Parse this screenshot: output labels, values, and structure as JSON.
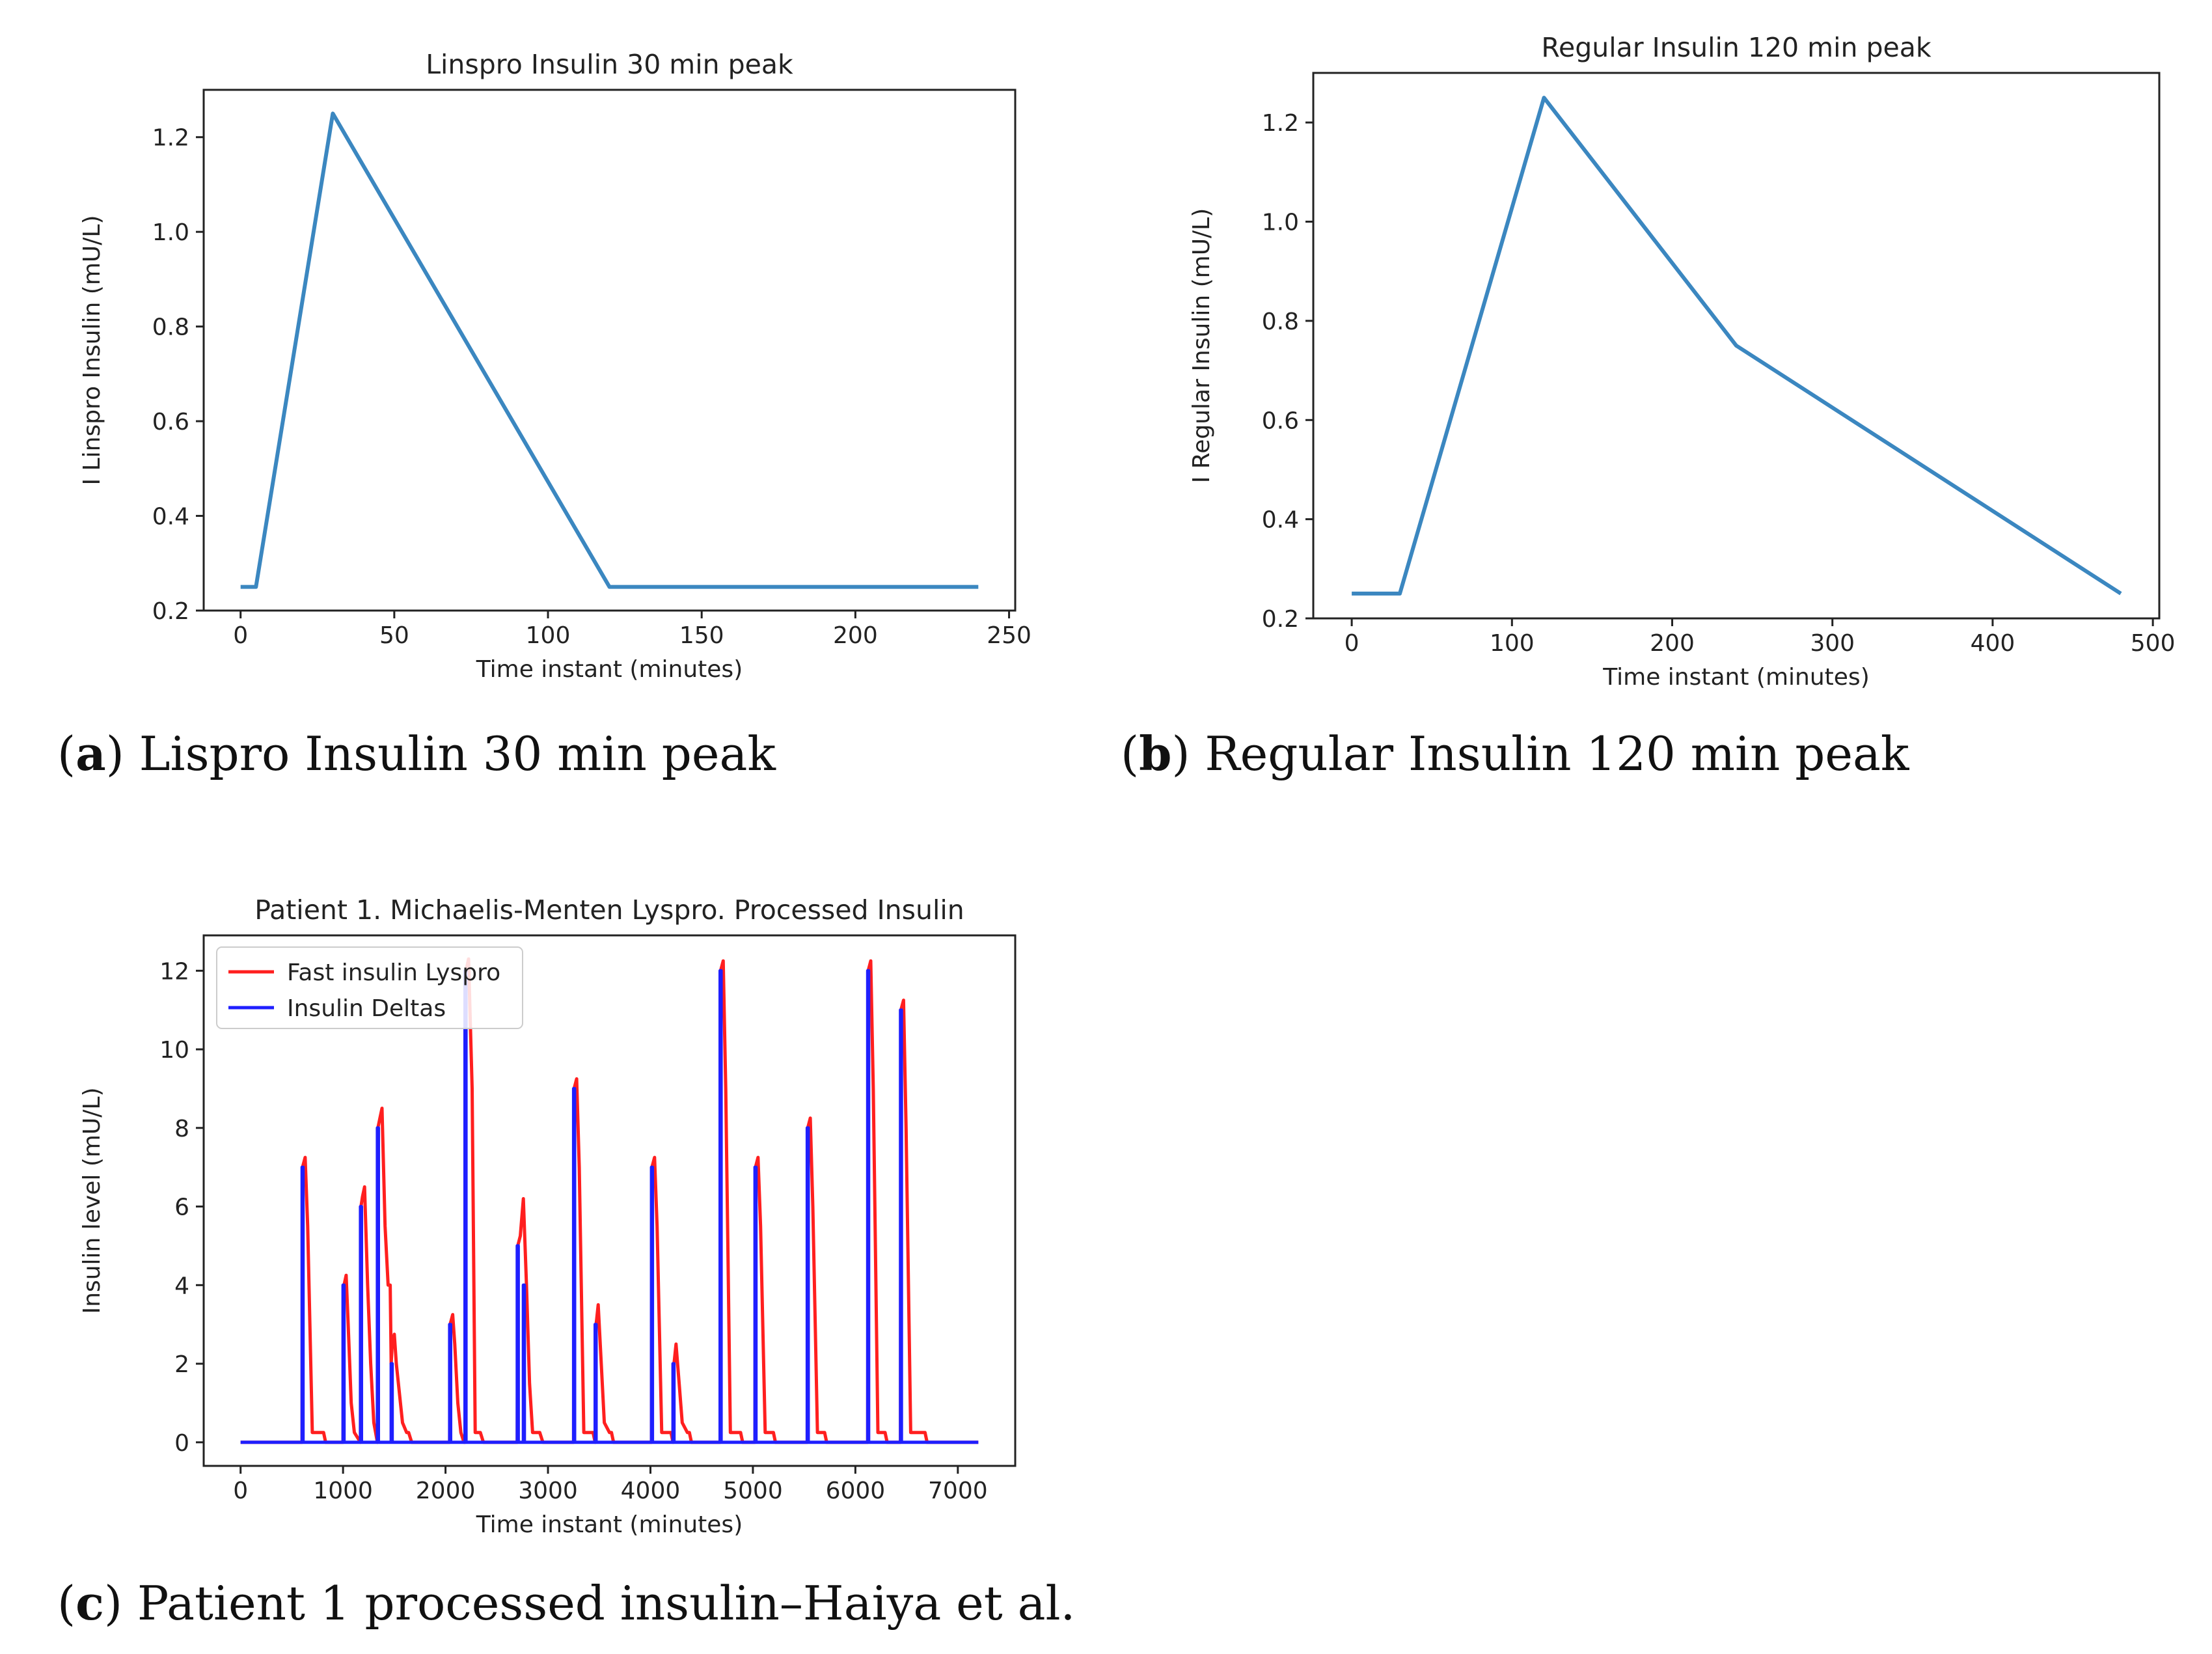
{
  "chart_data": [
    {
      "id": "a",
      "type": "line",
      "title": "Linspro Insulin 30 min peak",
      "xlabel": "Time instant (minutes)",
      "ylabel": "I Linspro Insulin (mU/L)",
      "xlim": [
        -12,
        252
      ],
      "ylim": [
        0.2,
        1.3
      ],
      "xticks": [
        0,
        50,
        100,
        150,
        200,
        250
      ],
      "yticks": [
        0.2,
        0.4,
        0.6,
        0.8,
        1.0,
        1.2
      ],
      "ytick_labels": [
        "0.2",
        "0.4",
        "0.6",
        "0.8",
        "1.0",
        "1.2"
      ],
      "grid": false,
      "series": [
        {
          "name": "insulin",
          "color": "#3b87c0",
          "x": [
            0,
            5,
            30,
            120,
            240
          ],
          "y": [
            0.25,
            0.25,
            1.25,
            0.25,
            0.25
          ]
        }
      ]
    },
    {
      "id": "b",
      "type": "line",
      "title": "Regular Insulin 120 min peak",
      "xlabel": "Time instant (minutes)",
      "ylabel": "I Regular Insulin (mU/L)",
      "xlim": [
        -24,
        504
      ],
      "ylim": [
        0.2,
        1.3
      ],
      "xticks": [
        0,
        100,
        200,
        300,
        400,
        500
      ],
      "yticks": [
        0.2,
        0.4,
        0.6,
        0.8,
        1.0,
        1.2
      ],
      "ytick_labels": [
        "0.2",
        "0.4",
        "0.6",
        "0.8",
        "1.0",
        "1.2"
      ],
      "grid": false,
      "series": [
        {
          "name": "insulin",
          "color": "#3b87c0",
          "x": [
            0,
            30,
            120,
            240,
            480
          ],
          "y": [
            0.25,
            0.25,
            1.25,
            0.75,
            0.25
          ]
        }
      ]
    },
    {
      "id": "c",
      "type": "line",
      "title": "Patient 1. Michaelis-Menten Lyspro. Processed Insulin",
      "xlabel": "Time instant (minutes)",
      "ylabel": "Insulin level (mU/L)",
      "xlim": [
        -360,
        7560
      ],
      "ylim": [
        -0.6,
        12.9
      ],
      "xticks": [
        0,
        1000,
        2000,
        3000,
        4000,
        5000,
        6000,
        7000
      ],
      "yticks": [
        0,
        2,
        4,
        6,
        8,
        10,
        12
      ],
      "ytick_labels": [
        "0",
        "2",
        "4",
        "6",
        "8",
        "10",
        "12"
      ],
      "grid": false,
      "legend": {
        "position": "top-left",
        "entries": [
          "Fast insulin Lyspro",
          "Insulin Deltas"
        ]
      },
      "series": [
        {
          "name": "Fast insulin Lyspro",
          "color": "#ff1f1f",
          "x": [
            0,
            600,
            605,
            630,
            655,
            700,
            720,
            810,
            830,
            1000,
            1010,
            1030,
            1050,
            1080,
            1110,
            1170,
            1175,
            1190,
            1210,
            1240,
            1270,
            1300,
            1335,
            1340,
            1360,
            1380,
            1410,
            1440,
            1460,
            1470,
            1480,
            1500,
            1520,
            1580,
            1620,
            1640,
            1670,
            1700,
            2040,
            2045,
            2070,
            2090,
            2120,
            2150,
            2180,
            2190,
            2200,
            2225,
            2260,
            2290,
            2340,
            2370,
            2700,
            2705,
            2730,
            2760,
            2790,
            2820,
            2850,
            2920,
            2950,
            3250,
            3255,
            3280,
            3305,
            3350,
            3370,
            3440,
            3460,
            3470,
            3490,
            3520,
            3550,
            3600,
            3620,
            3640,
            3700,
            4010,
            4015,
            4040,
            4065,
            4110,
            4130,
            4200,
            4220,
            4230,
            4250,
            4280,
            4310,
            4360,
            4380,
            4400,
            4460,
            4680,
            4685,
            4710,
            4735,
            4780,
            4800,
            4880,
            4900,
            5020,
            5025,
            5050,
            5075,
            5120,
            5140,
            5200,
            5220,
            5530,
            5535,
            5560,
            5585,
            5630,
            5650,
            5700,
            5720,
            6120,
            6125,
            6150,
            6175,
            6220,
            6240,
            6290,
            6310,
            6440,
            6445,
            6470,
            6495,
            6540,
            6560,
            6680,
            6700,
            7200
          ],
          "y": [
            0,
            0,
            7.0,
            7.25,
            5.5,
            0.25,
            0.25,
            0.25,
            0,
            0,
            4.0,
            4.25,
            3.0,
            1.0,
            0.25,
            0,
            6.0,
            6.25,
            6.5,
            4.0,
            2.0,
            0.5,
            0,
            8.0,
            8.25,
            8.5,
            5.5,
            4.0,
            4.0,
            2.0,
            2.5,
            2.75,
            2.0,
            0.5,
            0.25,
            0.25,
            0,
            0,
            0,
            3.0,
            3.25,
            2.5,
            1.0,
            0.25,
            0,
            0,
            12.0,
            12.3,
            9.0,
            0.25,
            0.25,
            0,
            0,
            5.0,
            5.25,
            6.2,
            4.0,
            1.5,
            0.25,
            0.25,
            0,
            0,
            9.0,
            9.25,
            7.0,
            0.25,
            0.25,
            0.25,
            0,
            3.0,
            3.5,
            2.0,
            0.5,
            0.25,
            0.25,
            0,
            0,
            0,
            7.0,
            7.25,
            5.5,
            0.25,
            0.25,
            0.25,
            0,
            2.0,
            2.5,
            1.5,
            0.5,
            0.25,
            0.25,
            0,
            0,
            0,
            12.0,
            12.25,
            9.0,
            0.25,
            0.25,
            0.25,
            0,
            0,
            7.0,
            7.25,
            5.5,
            0.25,
            0.25,
            0.25,
            0,
            0,
            8.0,
            8.25,
            6.0,
            0.25,
            0.25,
            0.25,
            0,
            0,
            12.0,
            12.25,
            9.0,
            0.25,
            0.25,
            0.25,
            0,
            0,
            11.0,
            11.25,
            8.0,
            0.25,
            0.25,
            0.25,
            0,
            0
          ]
        },
        {
          "name": "Insulin Deltas",
          "color": "#1f1fff",
          "x": [
            0,
            600,
            600,
            610,
            610,
            1000,
            1000,
            1010,
            1010,
            1170,
            1170,
            1180,
            1180,
            1335,
            1335,
            1345,
            1345,
            1470,
            1470,
            1480,
            1480,
            2040,
            2040,
            2050,
            2050,
            2190,
            2190,
            2200,
            2200,
            2700,
            2700,
            2710,
            2710,
            2760,
            2760,
            2770,
            2770,
            3250,
            3250,
            3260,
            3260,
            3460,
            3460,
            3470,
            3470,
            4010,
            4010,
            4020,
            4020,
            4220,
            4220,
            4230,
            4230,
            4680,
            4680,
            4690,
            4690,
            5020,
            5020,
            5030,
            5030,
            5530,
            5530,
            5540,
            5540,
            6120,
            6120,
            6130,
            6130,
            6440,
            6440,
            6450,
            6450,
            7200
          ],
          "y": [
            0,
            0,
            7,
            7,
            0,
            0,
            4,
            4,
            0,
            0,
            6,
            6,
            0,
            0,
            8,
            8,
            0,
            0,
            2,
            2,
            0,
            0,
            3,
            3,
            0,
            0,
            12,
            12,
            0,
            0,
            5,
            5,
            0,
            0,
            4,
            4,
            0,
            0,
            9,
            9,
            0,
            0,
            3,
            3,
            0,
            0,
            7,
            7,
            0,
            0,
            2,
            2,
            0,
            0,
            12,
            12,
            0,
            0,
            7,
            7,
            0,
            0,
            8,
            8,
            0,
            0,
            12,
            12,
            0,
            0,
            11,
            11,
            0,
            0
          ]
        }
      ]
    }
  ],
  "captions": {
    "a": {
      "letter": "a",
      "text": " Lispro Insulin 30 min peak"
    },
    "b": {
      "letter": "b",
      "text": " Regular Insulin 120 min peak"
    },
    "c": {
      "letter": "c",
      "text": " Patient 1 processed insulin–Haiya et al."
    }
  }
}
